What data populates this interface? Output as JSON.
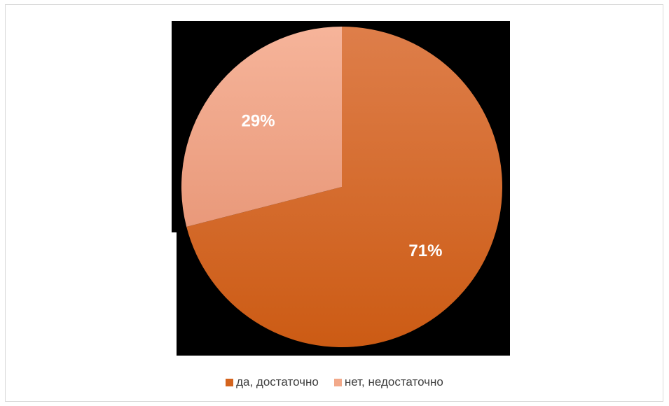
{
  "chart_data": {
    "type": "pie",
    "slices": [
      {
        "name": "да, достаточно",
        "value": 71,
        "label": "71%",
        "color": "#D4641E"
      },
      {
        "name": "нет, недостаточно",
        "value": 29,
        "label": "29%",
        "color": "#F2A98A"
      }
    ],
    "title": "",
    "legend_position": "bottom",
    "start_angle": "top",
    "direction": "clockwise"
  }
}
